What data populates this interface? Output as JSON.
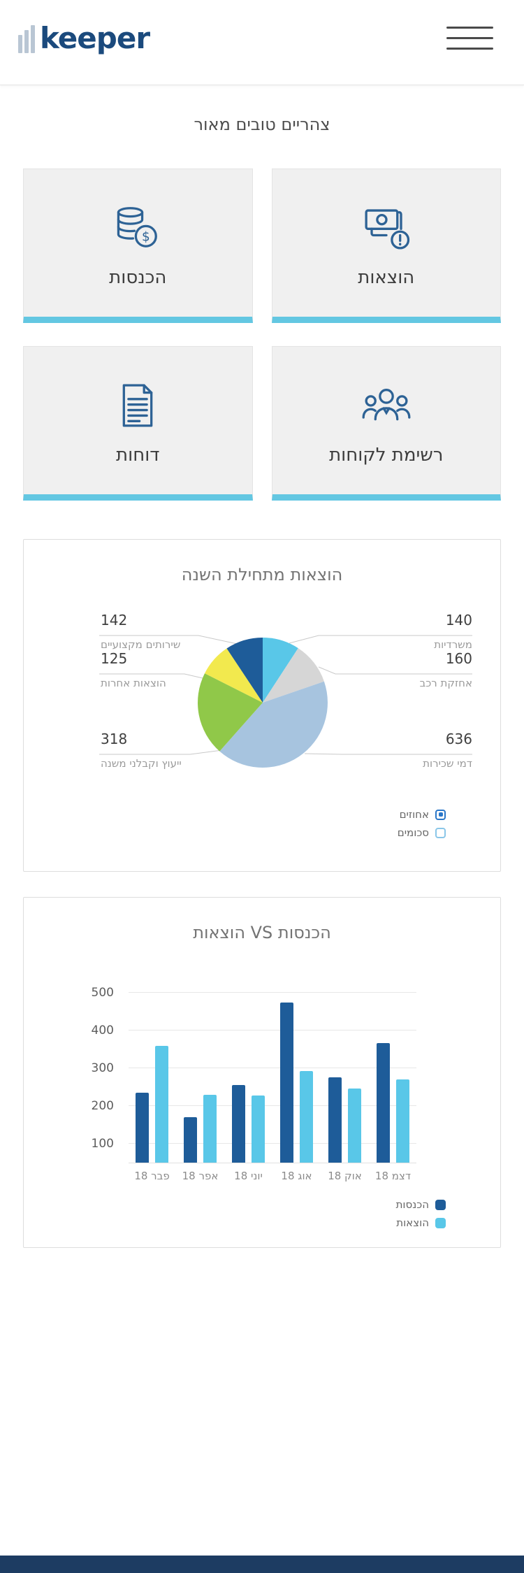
{
  "header": {
    "logo_text": "keeper",
    "menu_icon": "hamburger-menu-icon"
  },
  "greeting": "צהריים טובים מאור",
  "nav_tiles": [
    {
      "label": "הוצאות",
      "icon": "expenses-bills-icon"
    },
    {
      "label": "הכנסות",
      "icon": "income-coins-icon"
    },
    {
      "label": "רשימת לקוחות",
      "icon": "clients-group-icon"
    },
    {
      "label": "דוחות",
      "icon": "reports-document-icon"
    }
  ],
  "colors": {
    "brand_navy": "#1b4a7d",
    "tile_accent_cyan": "#63c7e2",
    "series_dark_blue": "#1e5c99",
    "series_light_blue": "#59c7e8",
    "footer_navy": "#1d3c62"
  },
  "chart_data": [
    {
      "type": "pie",
      "title": "הוצאות מתחילת השנה",
      "direction": "clockwise",
      "start_angle": "top",
      "slices": [
        {
          "label": "משרדיות",
          "value": 140,
          "color": "#59c7e8"
        },
        {
          "label": "אחזקת רכב",
          "value": 160,
          "color": "#d6d6d6"
        },
        {
          "label": "דמי שכירות",
          "value": 636,
          "color": "#a7c4df"
        },
        {
          "label": "ייעוץ וקבלני משנה",
          "value": 318,
          "color": "#90c849"
        },
        {
          "label": "הוצאות אחרות",
          "value": 125,
          "color": "#f2e94e"
        },
        {
          "label": "שירותים מקצועיים",
          "value": 142,
          "color": "#1e5c99"
        }
      ],
      "toggles": [
        {
          "label": "אחוזים",
          "selected": true
        },
        {
          "label": "סכומים",
          "selected": false
        }
      ]
    },
    {
      "type": "bar",
      "title": "הכנסות VS הוצאות",
      "categories": [
        "פבר 18",
        "אפר 18",
        "יוני 18",
        "אוג 18",
        "אוק 18",
        "דצמ 18"
      ],
      "series": [
        {
          "name": "הכנסות",
          "color": "#1e5c99",
          "values": [
            235,
            170,
            255,
            475,
            277,
            367
          ]
        },
        {
          "name": "הוצאות",
          "color": "#59c7e8",
          "values": [
            360,
            230,
            228,
            293,
            247,
            270
          ]
        }
      ],
      "y_ticks": [
        100,
        200,
        300,
        400,
        500
      ],
      "axis_min": 50,
      "axis_max": 530,
      "grid": true,
      "legend_position": "bottom"
    }
  ]
}
